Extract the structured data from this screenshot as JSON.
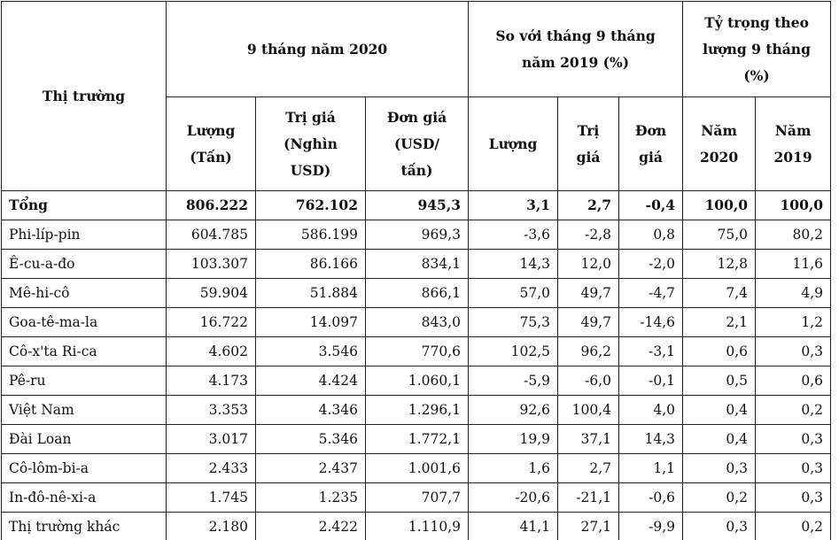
{
  "table": {
    "header": {
      "market": "Thị trường",
      "group1": "9 tháng năm 2020",
      "group2": "So với tháng 9 tháng năm 2019 (%)",
      "group3": "Tỷ trọng theo lượng 9 tháng (%)",
      "sub": [
        "Lượng (Tấn)",
        "Trị giá (Nghìn USD)",
        "Đơn giá (USD/ tấn)",
        "Lượng",
        "Trị giá",
        "Đơn giá",
        "Năm 2020",
        "Năm 2019"
      ]
    },
    "rows": [
      [
        "Tổng",
        "806.222",
        "762.102",
        "945,3",
        "3,1",
        "2,7",
        "-0,4",
        "100,0",
        "100,0"
      ],
      [
        "Phi-líp-pin",
        "604.785",
        "586.199",
        "969,3",
        "-3,6",
        "-2,8",
        "0,8",
        "75,0",
        "80,2"
      ],
      [
        "Ê-cu-a-đo",
        "103.307",
        "86.166",
        "834,1",
        "14,3",
        "12,0",
        "-2,0",
        "12,8",
        "11,6"
      ],
      [
        "Mê-hi-cô",
        "59.904",
        "51.884",
        "866,1",
        "57,0",
        "49,7",
        "-4,7",
        "7,4",
        "4,9"
      ],
      [
        "Goa-tê-ma-la",
        "16.722",
        "14.097",
        "843,0",
        "75,3",
        "49,7",
        "-14,6",
        "2,1",
        "1,2"
      ],
      [
        "Cô-x'ta Ri-ca",
        "4.602",
        "3.546",
        "770,6",
        "102,5",
        "96,2",
        "-3,1",
        "0,6",
        "0,3"
      ],
      [
        "Pê-ru",
        "4.173",
        "4.424",
        "1.060,1",
        "-5,9",
        "-6,0",
        "-0,1",
        "0,5",
        "0,6"
      ],
      [
        "Việt Nam",
        "3.353",
        "4.346",
        "1.296,1",
        "92,6",
        "100,4",
        "4,0",
        "0,4",
        "0,2"
      ],
      [
        "Đài Loan",
        "3.017",
        "5.346",
        "1.772,1",
        "19,9",
        "37,1",
        "14,3",
        "0,4",
        "0,3"
      ],
      [
        "Cô-lôm-bi-a",
        "2.433",
        "2.437",
        "1.001,6",
        "1,6",
        "2,7",
        "1,1",
        "0,3",
        "0,3"
      ],
      [
        "In-đô-nê-xi-a",
        "1.745",
        "1.235",
        "707,7",
        "-20,6",
        "-21,1",
        "-0,6",
        "0,2",
        "0,3"
      ],
      [
        "Thị trường khác",
        "2.180",
        "2.422",
        "1.110,9",
        "41,1",
        "27,1",
        "-9,9",
        "0,3",
        "0,2"
      ]
    ]
  }
}
